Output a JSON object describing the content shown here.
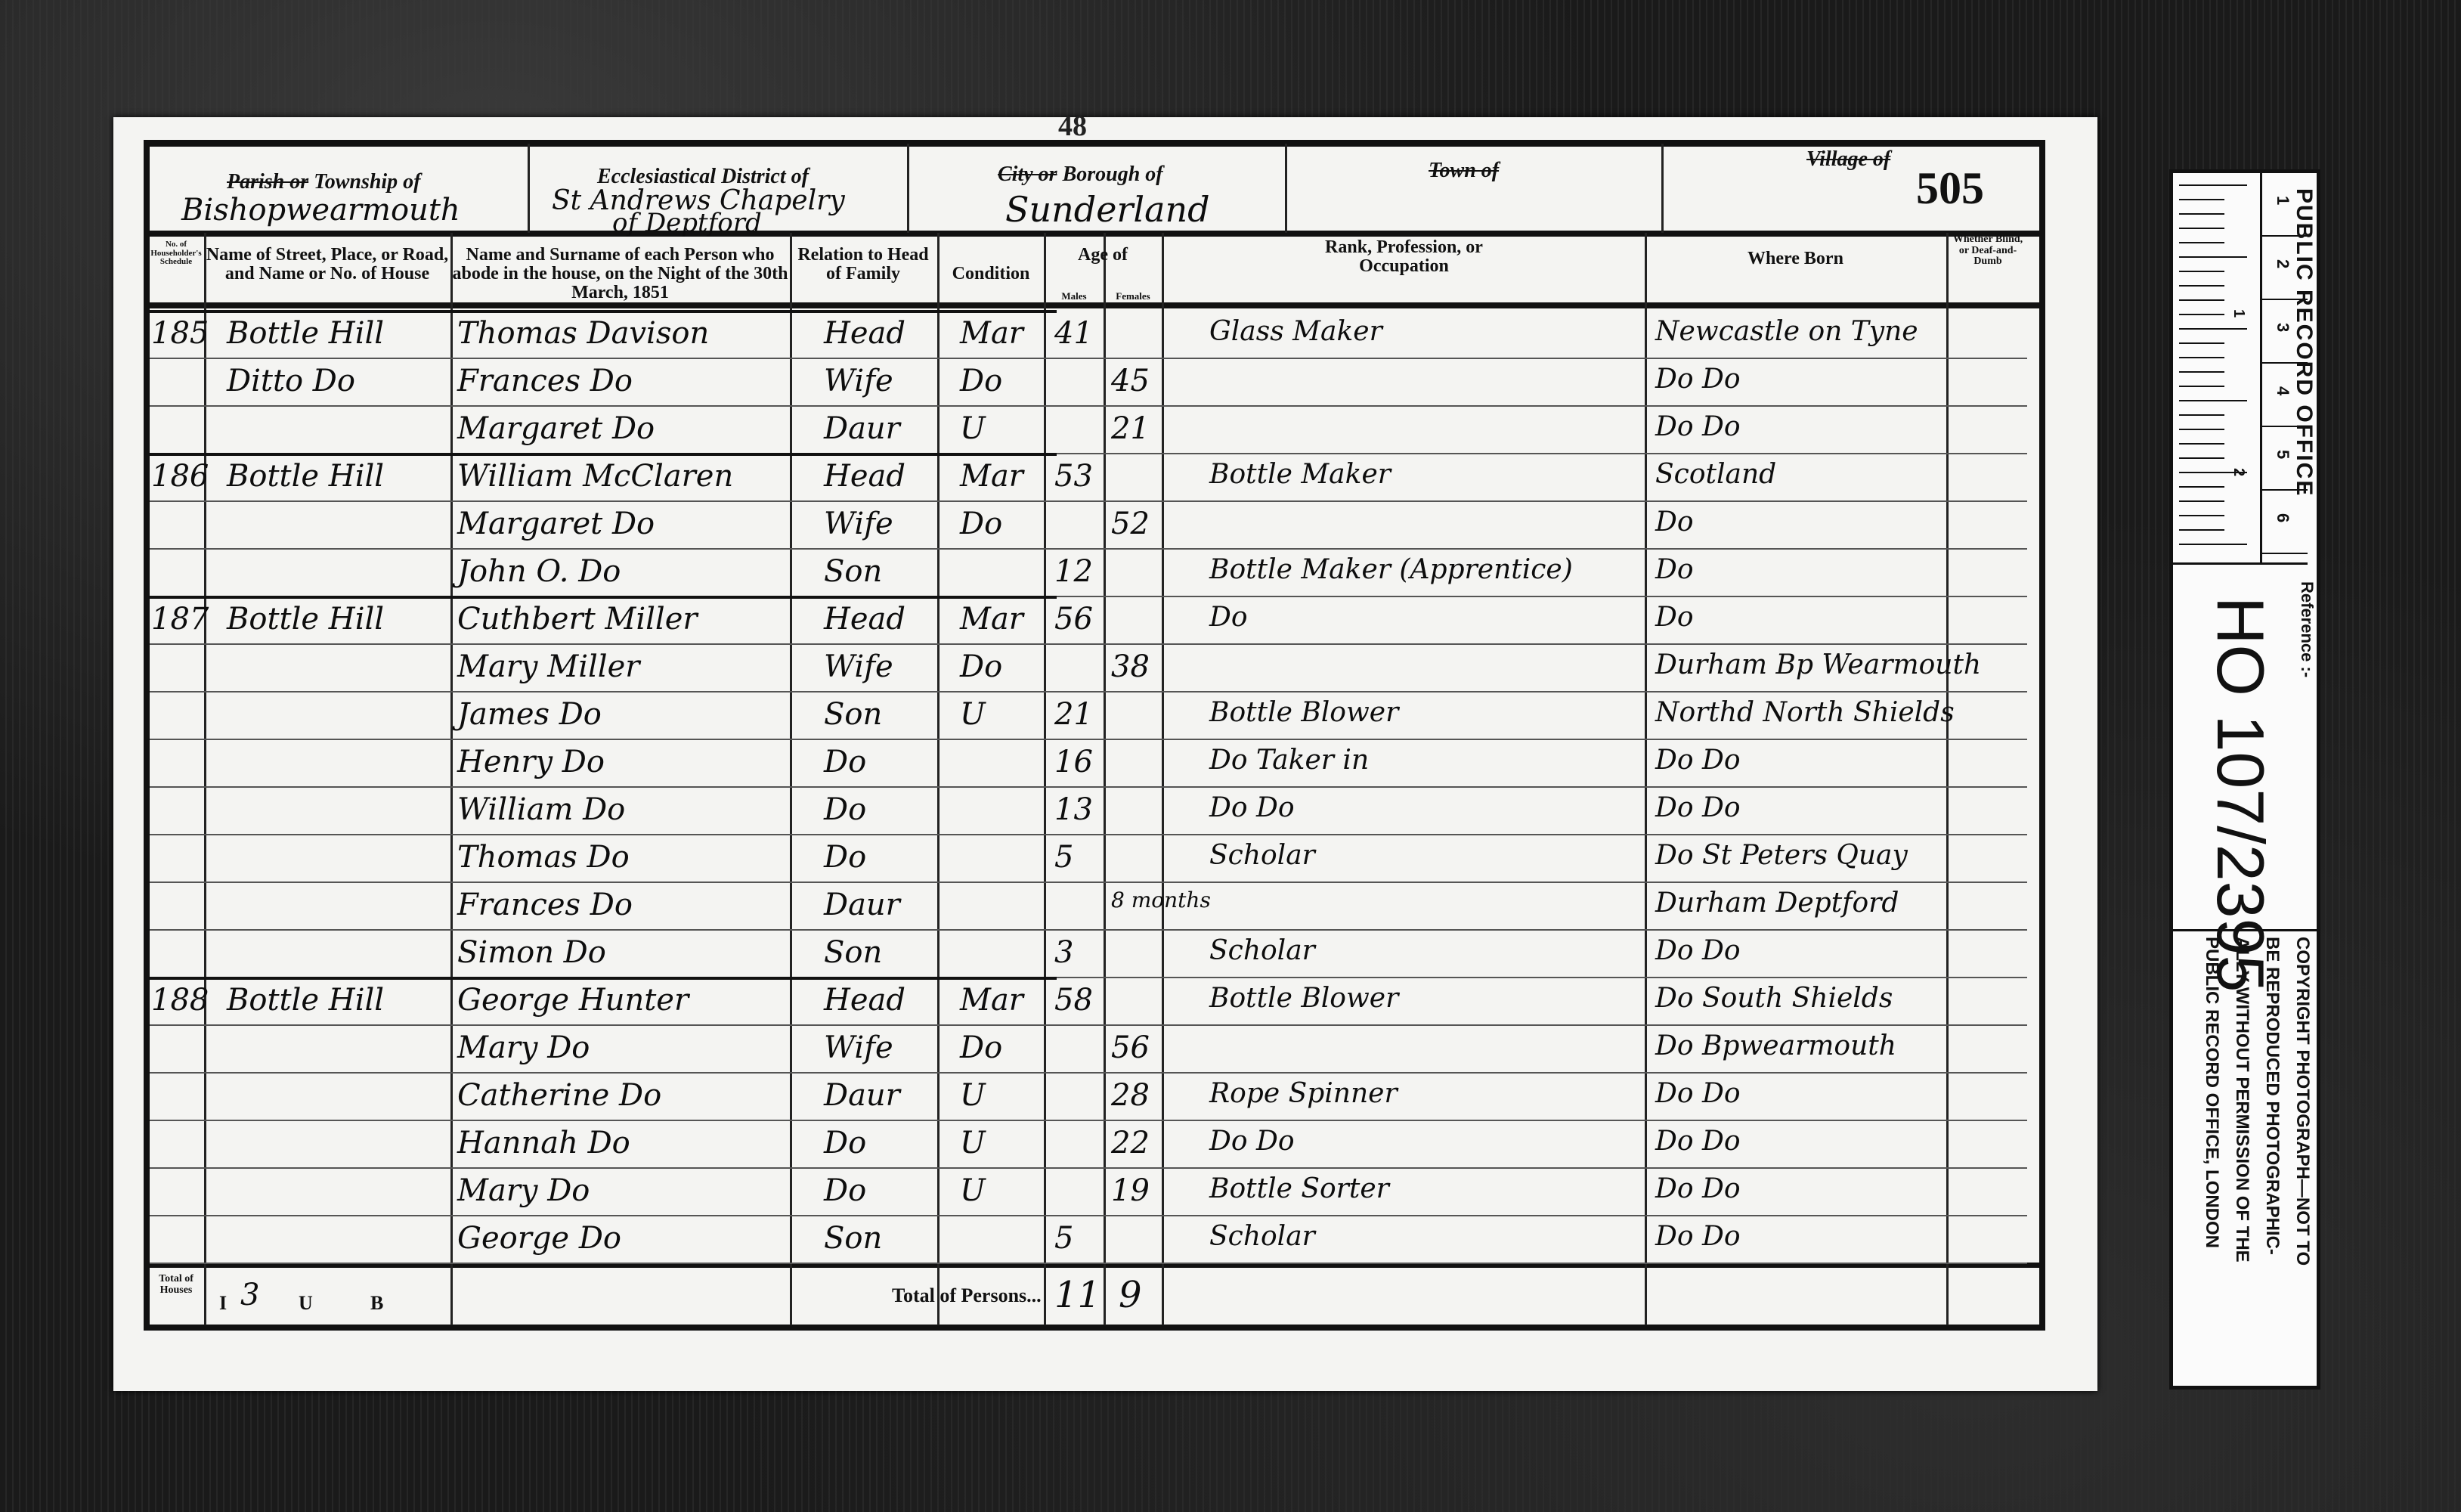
{
  "page_stamp": "48",
  "page_number": "505",
  "header": {
    "parish_label_struck": "Parish or",
    "township_label": "Township of",
    "township_value": "Bishopwearmouth",
    "ecclesiastical_label": "Ecclesiastical District of",
    "ecclesiastical_value_1": "St Andrews Chapelry",
    "ecclesiastical_value_2": "of Deptford",
    "city_label_struck": "City or",
    "borough_label": "Borough of",
    "borough_value": "Sunderland",
    "town_label_struck": "Town of",
    "village_label_struck": "Village of"
  },
  "columns": {
    "schedule": "No. of Householder's Schedule",
    "street": "Name of Street, Place, or Road, and Name or No. of House",
    "name": "Name and Surname of each Person who abode in the house, on the Night of the 30th March, 1851",
    "relation": "Relation to Head of Family",
    "condition": "Condition",
    "age": "Age of",
    "males": "Males",
    "females": "Females",
    "occupation": "Rank, Profession, or Occupation",
    "born": "Where Born",
    "blind": "Whether Blind, or Deaf-and-Dumb"
  },
  "rows": [
    {
      "schedule": "185",
      "street": "Bottle Hill",
      "name": "Thomas Davison",
      "relation": "Head",
      "condition": "Mar",
      "male": "41",
      "female": "",
      "occupation": "Glass Maker",
      "born": "Newcastle on Tyne"
    },
    {
      "schedule": "",
      "street": "Ditto Do",
      "name": "Frances Do",
      "relation": "Wife",
      "condition": "Do",
      "male": "",
      "female": "45",
      "occupation": "",
      "born": "Do      Do"
    },
    {
      "schedule": "",
      "street": "",
      "name": "Margaret Do",
      "relation": "Daur",
      "condition": "U",
      "male": "",
      "female": "21",
      "occupation": "",
      "born": "Do      Do"
    },
    {
      "schedule": "186",
      "street": "Bottle Hill",
      "name": "William McClaren",
      "relation": "Head",
      "condition": "Mar",
      "male": "53",
      "female": "",
      "occupation": "Bottle Maker",
      "born": "Scotland"
    },
    {
      "schedule": "",
      "street": "",
      "name": "Margaret Do",
      "relation": "Wife",
      "condition": "Do",
      "male": "",
      "female": "52",
      "occupation": "",
      "born": "Do"
    },
    {
      "schedule": "",
      "street": "",
      "name": "John O. Do",
      "relation": "Son",
      "condition": "",
      "male": "12",
      "female": "",
      "occupation": "Bottle Maker (Apprentice)",
      "born": "Do"
    },
    {
      "schedule": "187",
      "street": "Bottle Hill",
      "name": "Cuthbert Miller",
      "relation": "Head",
      "condition": "Mar",
      "male": "56",
      "female": "",
      "occupation": "Do",
      "born": "Do"
    },
    {
      "schedule": "",
      "street": "",
      "name": "Mary Miller",
      "relation": "Wife",
      "condition": "Do",
      "male": "",
      "female": "38",
      "occupation": "",
      "born": "Durham Bp Wearmouth"
    },
    {
      "schedule": "",
      "street": "",
      "name": "James Do",
      "relation": "Son",
      "condition": "U",
      "male": "21",
      "female": "",
      "occupation": "Bottle Blower",
      "born": "Northd North Shields"
    },
    {
      "schedule": "",
      "street": "",
      "name": "Henry Do",
      "relation": "Do",
      "condition": "",
      "male": "16",
      "female": "",
      "occupation": "Do Taker in",
      "born": "Do      Do"
    },
    {
      "schedule": "",
      "street": "",
      "name": "William Do",
      "relation": "Do",
      "condition": "",
      "male": "13",
      "female": "",
      "occupation": "Do    Do",
      "born": "Do      Do"
    },
    {
      "schedule": "",
      "street": "",
      "name": "Thomas Do",
      "relation": "Do",
      "condition": "",
      "male": "5",
      "female": "",
      "occupation": "Scholar",
      "born": "Do St Peters Quay"
    },
    {
      "schedule": "",
      "street": "",
      "name": "Frances Do",
      "relation": "Daur",
      "condition": "",
      "male": "",
      "female": "8 months",
      "occupation": "",
      "born": "Durham Deptford"
    },
    {
      "schedule": "",
      "street": "",
      "name": "Simon Do",
      "relation": "Son",
      "condition": "",
      "male": "3",
      "female": "",
      "occupation": "Scholar",
      "born": "Do      Do"
    },
    {
      "schedule": "188",
      "street": "Bottle Hill",
      "name": "George Hunter",
      "relation": "Head",
      "condition": "Mar",
      "male": "58",
      "female": "",
      "occupation": "Bottle Blower",
      "born": "Do South Shields"
    },
    {
      "schedule": "",
      "street": "",
      "name": "Mary Do",
      "relation": "Wife",
      "condition": "Do",
      "male": "",
      "female": "56",
      "occupation": "",
      "born": "Do Bpwearmouth"
    },
    {
      "schedule": "",
      "street": "",
      "name": "Catherine Do",
      "relation": "Daur",
      "condition": "U",
      "male": "",
      "female": "28",
      "occupation": "Rope Spinner",
      "born": "Do      Do"
    },
    {
      "schedule": "",
      "street": "",
      "name": "Hannah Do",
      "relation": "Do",
      "condition": "U",
      "male": "",
      "female": "22",
      "occupation": "Do    Do",
      "born": "Do      Do"
    },
    {
      "schedule": "",
      "street": "",
      "name": "Mary Do",
      "relation": "Do",
      "condition": "U",
      "male": "",
      "female": "19",
      "occupation": "Bottle Sorter",
      "born": "Do      Do"
    },
    {
      "schedule": "",
      "street": "",
      "name": "George Do",
      "relation": "Son",
      "condition": "",
      "male": "5",
      "female": "",
      "occupation": "Scholar",
      "born": "Do      Do"
    }
  ],
  "totals": {
    "houses_label": "Total of Houses",
    "inhabited_label": "I",
    "inhabited_value": "3",
    "uninhabited_label": "U",
    "building_label": "B",
    "persons_label": "Total of Persons...",
    "males_total": "11",
    "females_total": "9"
  },
  "sticker": {
    "office": "PUBLIC RECORD OFFICE",
    "scale_numbers": [
      "1",
      "2",
      "3",
      "4",
      "5",
      "6"
    ],
    "ruler_numbers": [
      "1",
      "2"
    ],
    "reference_label": "Reference :-",
    "reference": "HO 107/2395",
    "copyright": [
      "COPYRIGHT PHOTOGRAPH—NOT TO",
      "BE REPRODUCED PHOTOGRAPHIC-",
      "ALLY WITHOUT PERMISSION OF THE",
      "PUBLIC RECORD OFFICE, LONDON"
    ]
  }
}
